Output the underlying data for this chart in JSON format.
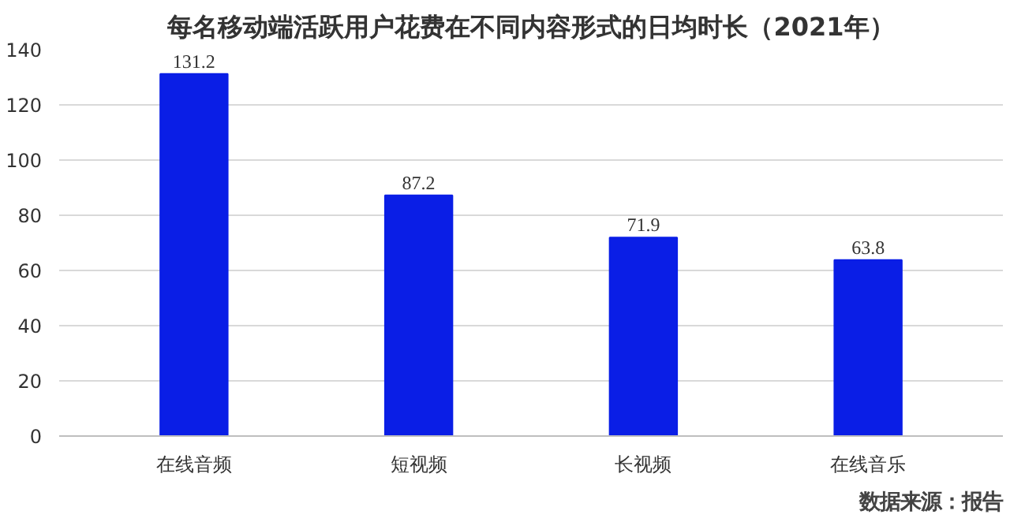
{
  "chart_data": {
    "type": "bar",
    "title": "每名移动端活跃用户花费在不同内容形式的日均时长（2021年）",
    "categories": [
      "在线音频",
      "短视频",
      "长视频",
      "在线音乐"
    ],
    "values": [
      131.2,
      87.2,
      71.9,
      63.8
    ],
    "color": "#0a1ee6",
    "ylim": [
      0,
      140
    ],
    "yticks": [
      0,
      20,
      40,
      60,
      80,
      100,
      120,
      140
    ],
    "grid": "y",
    "data_labels": true,
    "annotations": [
      "数据来源：报告"
    ]
  }
}
